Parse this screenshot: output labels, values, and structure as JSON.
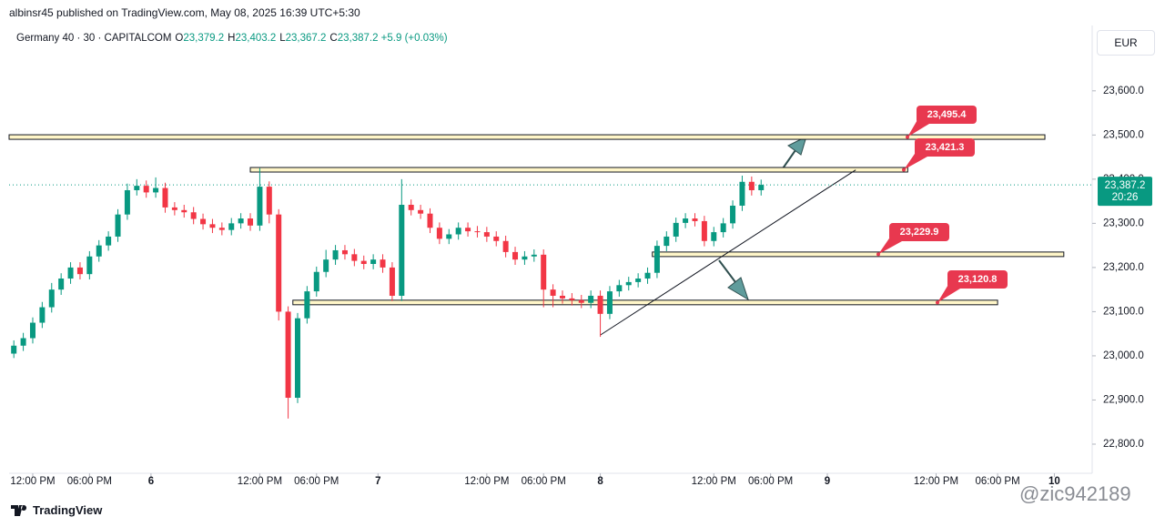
{
  "header": {
    "published": "albinsr45 published on TradingView.com, May 08, 2025 16:39 UTC+5:30",
    "symbol": "Germany 40 · 30 · CAPITALCOM",
    "ohlc": [
      {
        "k": "O",
        "v": "23,379.2"
      },
      {
        "k": "H",
        "v": "23,403.2"
      },
      {
        "k": "L",
        "v": "23,367.2"
      },
      {
        "k": "C",
        "v": "23,387.2"
      }
    ],
    "change": "+5.9 (+0.03%)",
    "currency": "EUR"
  },
  "footer": {
    "brand": "TradingView",
    "watermark": "@zic942189"
  },
  "chart_data": {
    "type": "candlestick",
    "up_color": "#089981",
    "down_color": "#f23645",
    "x": [
      1,
      3,
      5,
      7,
      9,
      11,
      13,
      15,
      17,
      19,
      21,
      23,
      25,
      27,
      29,
      31,
      33,
      35,
      37,
      39,
      41,
      43,
      45,
      47,
      49,
      51,
      53,
      55,
      57,
      59,
      61,
      63,
      65,
      67,
      69,
      71,
      73,
      75,
      77,
      79,
      81,
      83,
      85,
      87,
      89,
      91,
      93,
      95,
      97,
      99,
      101,
      103,
      105,
      107,
      109,
      111,
      113,
      115,
      117,
      119,
      121,
      123,
      125,
      127,
      129,
      131,
      133,
      135,
      137,
      139,
      141,
      143,
      145,
      147,
      149,
      151,
      153,
      155,
      157,
      159
    ],
    "open": [
      23005,
      23023,
      23040,
      23075,
      23110,
      23150,
      23175,
      23200,
      23185,
      23225,
      23250,
      23270,
      23320,
      23375,
      23385,
      23370,
      23380,
      23336,
      23330,
      23325,
      23310,
      23298,
      23290,
      23285,
      23300,
      23311,
      23295,
      23383,
      23320,
      23100,
      22905,
      23085,
      23146,
      23190,
      23218,
      23239,
      23230,
      23215,
      23208,
      23218,
      23200,
      23136,
      23342,
      23330,
      23322,
      23290,
      23265,
      23275,
      23290,
      23282,
      23280,
      23270,
      23260,
      23235,
      23218,
      23225,
      23229,
      23150,
      23136,
      23130,
      23126,
      23120,
      23136,
      23095,
      23146,
      23160,
      23167,
      23175,
      23188,
      23249,
      23270,
      23301,
      23311,
      23305,
      23260,
      23280,
      23300,
      23340,
      23394,
      23375
    ],
    "high": [
      23035,
      23052,
      23087,
      23122,
      23165,
      23187,
      23212,
      23212,
      23237,
      23262,
      23282,
      23332,
      23390,
      23400,
      23397,
      23404,
      23392,
      23348,
      23342,
      23337,
      23322,
      23310,
      23302,
      23312,
      23323,
      23323,
      23425,
      23395,
      23332,
      23112,
      23097,
      23158,
      23202,
      23240,
      23251,
      23251,
      23242,
      23227,
      23230,
      23230,
      23212,
      23400,
      23354,
      23342,
      23334,
      23302,
      23287,
      23302,
      23302,
      23294,
      23292,
      23282,
      23272,
      23247,
      23237,
      23241,
      23241,
      23162,
      23148,
      23142,
      23138,
      23148,
      23148,
      23158,
      23172,
      23179,
      23187,
      23200,
      23261,
      23282,
      23313,
      23323,
      23323,
      23317,
      23292,
      23312,
      23352,
      23408,
      23406,
      23399
    ],
    "low": [
      22995,
      23011,
      23028,
      23063,
      23098,
      23138,
      23163,
      23173,
      23173,
      23213,
      23238,
      23258,
      23308,
      23363,
      23358,
      23358,
      23324,
      23318,
      23313,
      23298,
      23286,
      23278,
      23273,
      23273,
      23288,
      23283,
      23283,
      23300,
      23080,
      22858,
      22893,
      23073,
      23134,
      23178,
      23206,
      23218,
      23203,
      23196,
      23196,
      23188,
      23124,
      23124,
      23318,
      23310,
      23278,
      23253,
      23253,
      23263,
      23270,
      23268,
      23258,
      23248,
      23223,
      23206,
      23206,
      23213,
      23110,
      23110,
      23118,
      23114,
      23108,
      23108,
      23043,
      23083,
      23134,
      23148,
      23155,
      23163,
      23176,
      23237,
      23258,
      23289,
      23293,
      23248,
      23248,
      23268,
      23288,
      23328,
      23363,
      23363
    ],
    "close": [
      23023,
      23040,
      23075,
      23110,
      23150,
      23175,
      23200,
      23185,
      23225,
      23250,
      23270,
      23320,
      23375,
      23385,
      23370,
      23380,
      23336,
      23330,
      23325,
      23310,
      23298,
      23290,
      23285,
      23300,
      23311,
      23295,
      23383,
      23320,
      23100,
      22905,
      23085,
      23146,
      23190,
      23218,
      23239,
      23230,
      23215,
      23208,
      23218,
      23200,
      23136,
      23342,
      23330,
      23322,
      23290,
      23265,
      23275,
      23290,
      23282,
      23280,
      23270,
      23260,
      23235,
      23218,
      23225,
      23229,
      23150,
      23136,
      23130,
      23126,
      23120,
      23136,
      23095,
      23146,
      23160,
      23167,
      23175,
      23188,
      23249,
      23270,
      23301,
      23311,
      23305,
      23260,
      23280,
      23300,
      23340,
      23394,
      23375,
      23387.2
    ],
    "xlim": [
      0,
      229
    ],
    "xticks": [
      {
        "value": 5,
        "label": "12:00 PM"
      },
      {
        "value": 17,
        "label": "06:00 PM"
      },
      {
        "value": 30,
        "label": "6"
      },
      {
        "value": 53,
        "label": "12:00 PM"
      },
      {
        "value": 65,
        "label": "06:00 PM"
      },
      {
        "value": 78,
        "label": "7"
      },
      {
        "value": 101,
        "label": "12:00 PM"
      },
      {
        "value": 113,
        "label": "06:00 PM"
      },
      {
        "value": 125,
        "label": "8"
      },
      {
        "value": 149,
        "label": "12:00 PM"
      },
      {
        "value": 161,
        "label": "06:00 PM"
      },
      {
        "value": 173,
        "label": "9"
      },
      {
        "value": 196,
        "label": "12:00 PM"
      },
      {
        "value": 209,
        "label": "06:00 PM"
      },
      {
        "value": 221,
        "label": "10"
      }
    ],
    "ylim": [
      22734,
      23748
    ],
    "yticks": [
      {
        "value": 22800,
        "label": "22,800.0"
      },
      {
        "value": 22900,
        "label": "22,900.0"
      },
      {
        "value": 23000,
        "label": "23,000.0"
      },
      {
        "value": 23100,
        "label": "23,100.0"
      },
      {
        "value": 23200,
        "label": "23,200.0"
      },
      {
        "value": 23300,
        "label": "23,300.0"
      },
      {
        "value": 23400,
        "label": "23,400.0"
      },
      {
        "value": 23500,
        "label": "23,500.0"
      },
      {
        "value": 23600,
        "label": "23,600.0"
      }
    ],
    "levels": [
      {
        "value": 23495.4,
        "label": "23,495.4",
        "x_start": 0,
        "x_end": 219
      },
      {
        "value": 23421.3,
        "label": "23,421.3",
        "x_start": 51,
        "x_end": 190
      },
      {
        "value": 23229.9,
        "label": "23,229.9",
        "x_start": 136,
        "x_end": 223
      },
      {
        "value": 23120.8,
        "label": "23,120.8",
        "x_start": 60,
        "x_end": 209
      }
    ],
    "trendline": {
      "x": [
        125,
        179
      ],
      "values": [
        23047,
        23421
      ]
    },
    "last_price": {
      "value": 23387.2,
      "label": "23,387.2",
      "countdown": "20:26"
    }
  }
}
